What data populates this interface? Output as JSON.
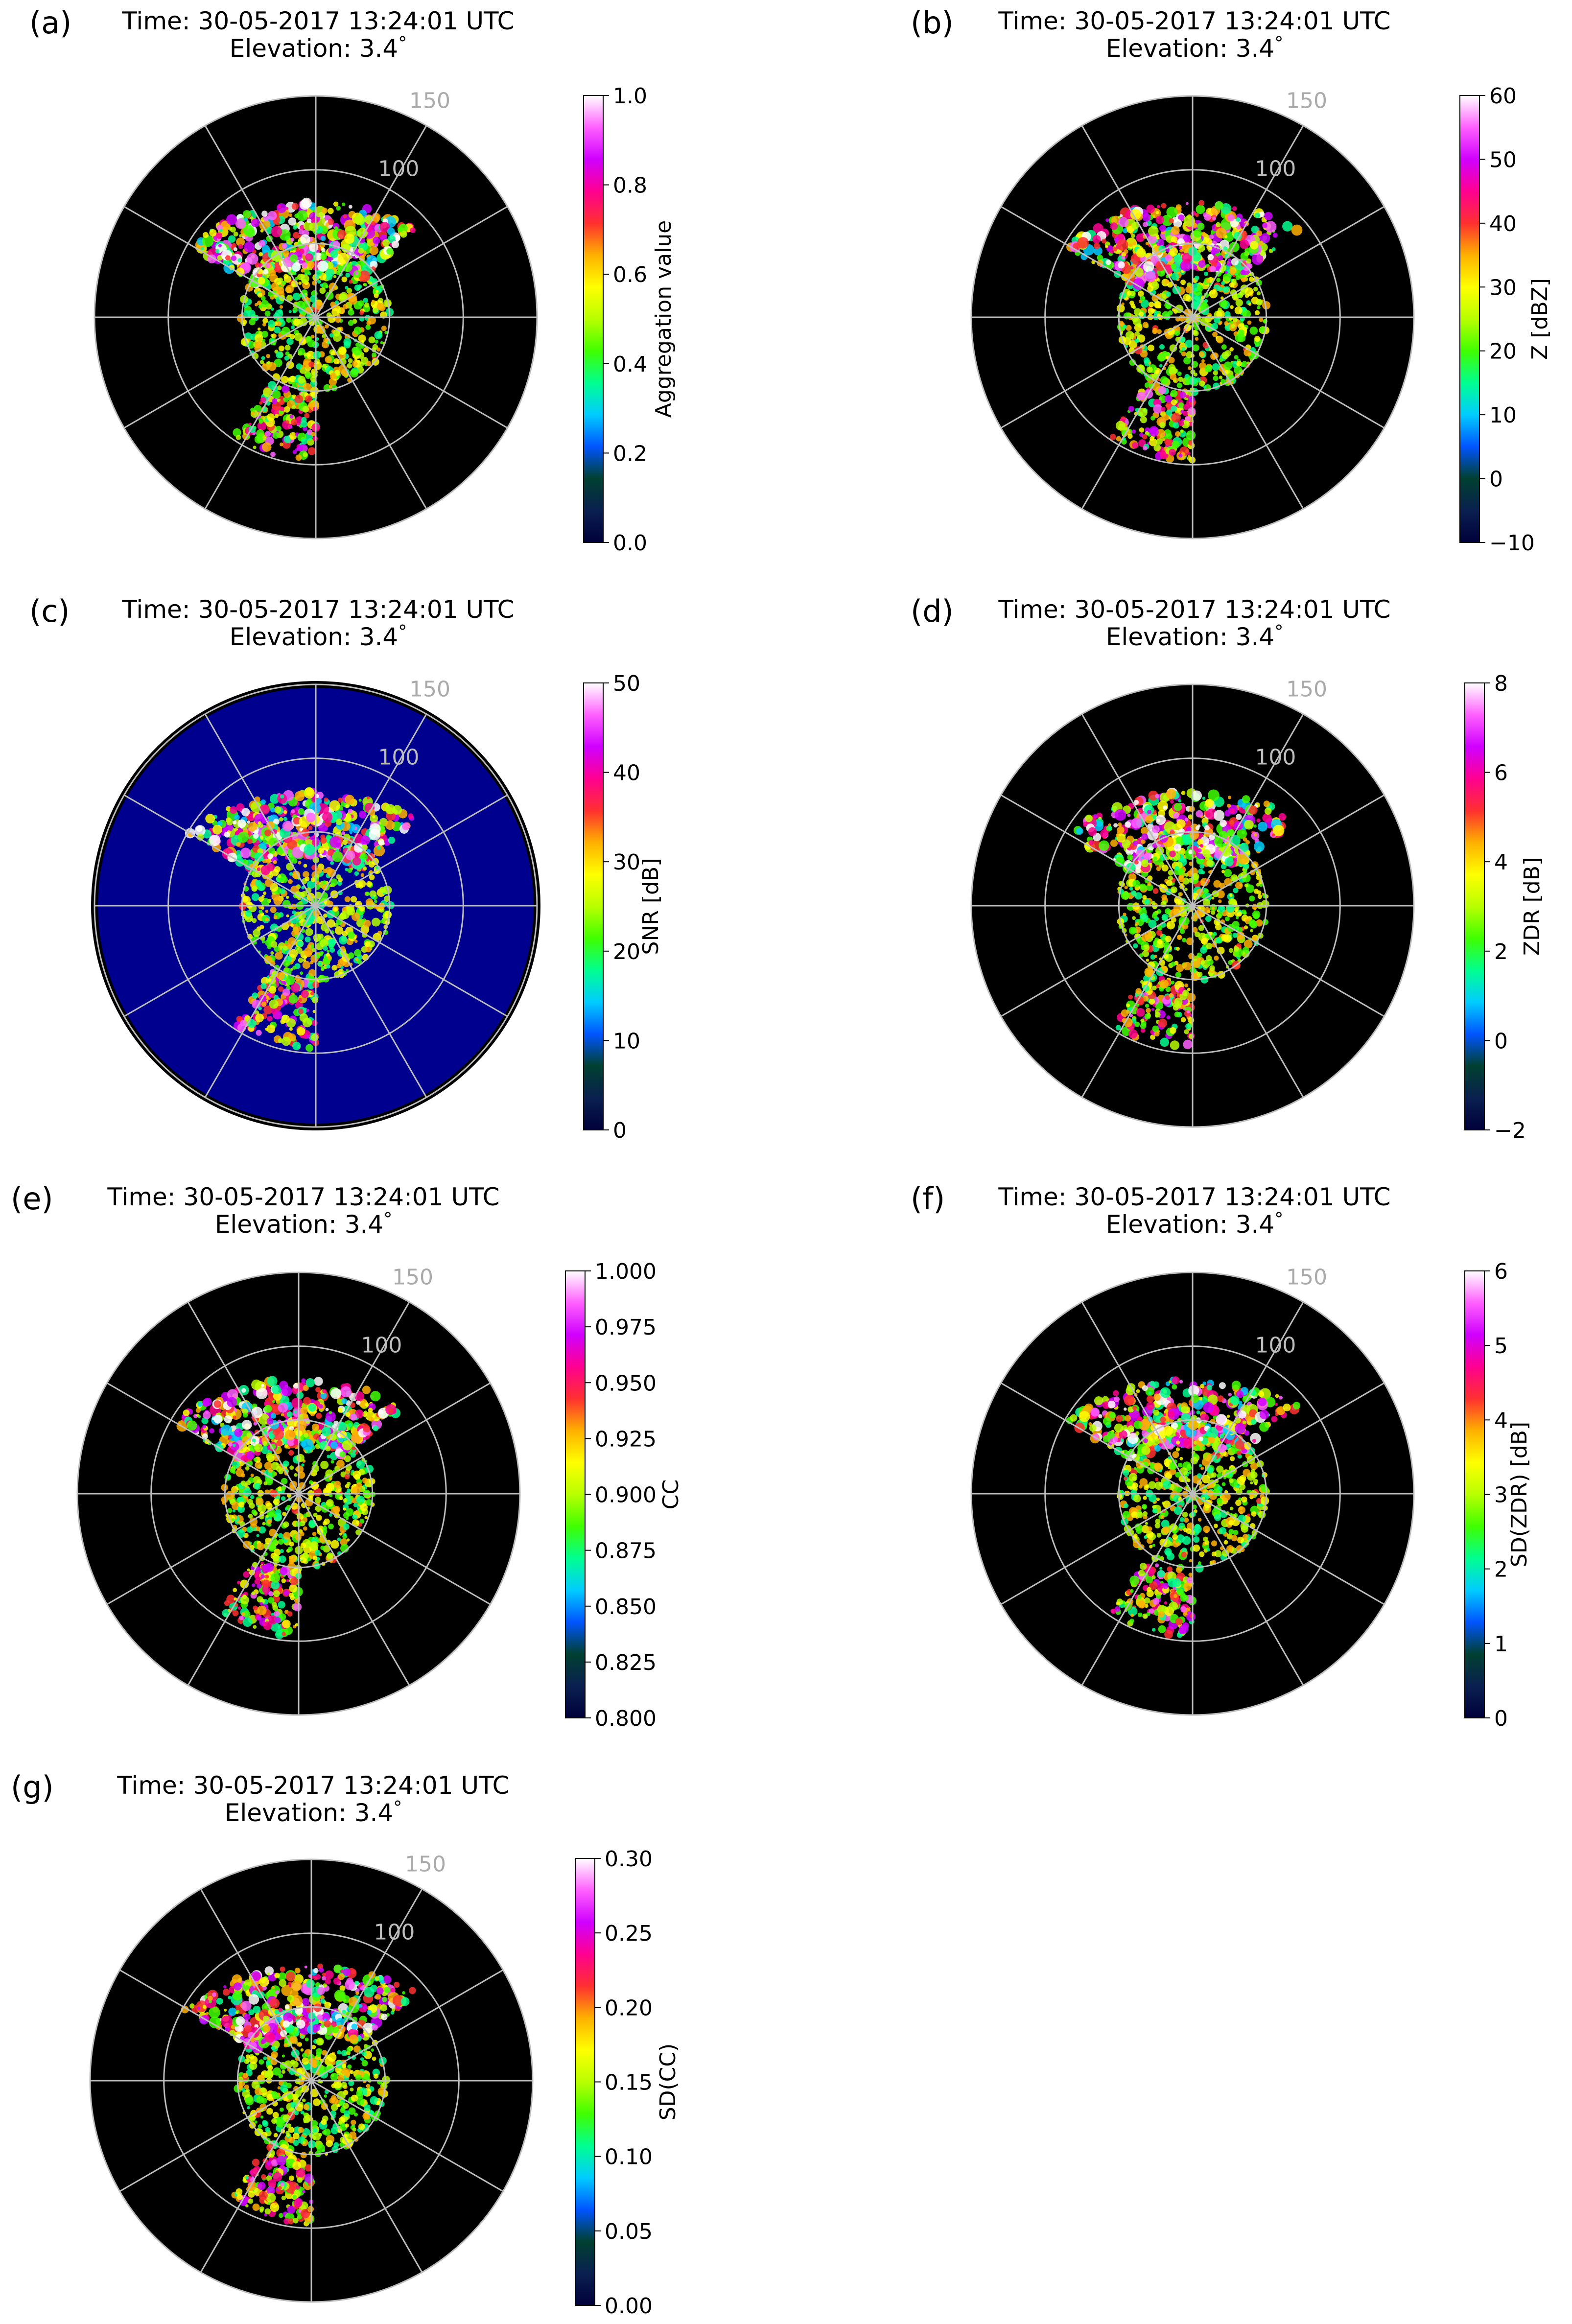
{
  "figure": {
    "panels": [
      {
        "letter": "(a)",
        "time_line": "Time: 30-05-2017 13:24:01 UTC",
        "elev_prefix": "Elevation: 3.4",
        "elev_degree": "°",
        "range_labels": [
          "100",
          "150"
        ],
        "colorbar": {
          "label": "Aggregation value",
          "ticks": [
            "0.0",
            "0.2",
            "0.4",
            "0.6",
            "0.8",
            "1.0"
          ],
          "range": [
            0.0,
            1.0
          ]
        },
        "background": "#000000"
      },
      {
        "letter": "(b)",
        "time_line": "Time: 30-05-2017 13:24:01 UTC",
        "elev_prefix": "Elevation: 3.4",
        "elev_degree": "°",
        "range_labels": [
          "100",
          "150"
        ],
        "colorbar": {
          "label": "Z [dBZ]",
          "ticks": [
            "−10",
            "0",
            "10",
            "20",
            "30",
            "40",
            "50",
            "60"
          ],
          "range": [
            -10,
            60
          ]
        },
        "background": "#000000"
      },
      {
        "letter": "(c)",
        "time_line": "Time: 30-05-2017 13:24:01 UTC",
        "elev_prefix": "Elevation: 3.4",
        "elev_degree": "°",
        "range_labels": [
          "100",
          "150"
        ],
        "colorbar": {
          "label": "SNR [dB]",
          "ticks": [
            "0",
            "10",
            "20",
            "30",
            "40",
            "50"
          ],
          "range": [
            0,
            50
          ]
        },
        "background": "#00008f"
      },
      {
        "letter": "(d)",
        "time_line": "Time: 30-05-2017 13:24:01 UTC",
        "elev_prefix": "Elevation: 3.4",
        "elev_degree": "°",
        "range_labels": [
          "100",
          "150"
        ],
        "colorbar": {
          "label": "ZDR [dB]",
          "ticks": [
            "−2",
            "0",
            "2",
            "4",
            "6",
            "8"
          ],
          "range": [
            -2,
            8
          ]
        },
        "background": "#000000"
      },
      {
        "letter": "(e)",
        "time_line": "Time: 30-05-2017 13:24:01 UTC",
        "elev_prefix": "Elevation: 3.4",
        "elev_degree": "°",
        "range_labels": [
          "100",
          "150"
        ],
        "colorbar": {
          "label": "CC",
          "ticks": [
            "0.800",
            "0.825",
            "0.850",
            "0.875",
            "0.900",
            "0.925",
            "0.950",
            "0.975",
            "1.000"
          ],
          "range": [
            0.8,
            1.0
          ]
        },
        "background": "#000000"
      },
      {
        "letter": "(f)",
        "time_line": "Time: 30-05-2017 13:24:01 UTC",
        "elev_prefix": "Elevation: 3.4",
        "elev_degree": "°",
        "range_labels": [
          "100",
          "150"
        ],
        "colorbar": {
          "label": "SD(ZDR) [dB]",
          "ticks": [
            "0",
            "1",
            "2",
            "3",
            "4",
            "5",
            "6"
          ],
          "range": [
            0,
            6
          ]
        },
        "background": "#000000"
      },
      {
        "letter": "(g)",
        "time_line": "Time: 30-05-2017 13:24:01 UTC",
        "elev_prefix": "Elevation: 3.4",
        "elev_degree": "°",
        "range_labels": [
          "100",
          "150"
        ],
        "colorbar": {
          "label": "SD(CC)",
          "ticks": [
            "0.00",
            "0.05",
            "0.10",
            "0.15",
            "0.20",
            "0.25",
            "0.30"
          ],
          "range": [
            0.0,
            0.3
          ]
        },
        "background": "#000000"
      }
    ]
  },
  "colormap_stops": [
    "#00003a",
    "#0a2050",
    "#004030",
    "#0055ff",
    "#00ccff",
    "#00ff90",
    "#40ff00",
    "#b8ff00",
    "#ffff00",
    "#ffb000",
    "#ff3030",
    "#ff0090",
    "#d000ff",
    "#ff60ff",
    "#ffffff"
  ],
  "chart_data": [
    {
      "type": "heatmap",
      "projection": "polar",
      "panel": "(a)",
      "title": "Time: 30-05-2017 13:24:01 UTC / Elevation: 3.4°",
      "range_rings": [
        50,
        100,
        150
      ],
      "range_ring_labels": [
        100,
        150
      ],
      "spokes_deg": 30,
      "colorbar_label": "Aggregation value",
      "colorbar_range": [
        0.0,
        1.0
      ]
    },
    {
      "type": "heatmap",
      "projection": "polar",
      "panel": "(b)",
      "title": "Time: 30-05-2017 13:24:01 UTC / Elevation: 3.4°",
      "range_rings": [
        50,
        100,
        150
      ],
      "range_ring_labels": [
        100,
        150
      ],
      "spokes_deg": 30,
      "colorbar_label": "Z [dBZ]",
      "colorbar_range": [
        -10,
        60
      ]
    },
    {
      "type": "heatmap",
      "projection": "polar",
      "panel": "(c)",
      "title": "Time: 30-05-2017 13:24:01 UTC / Elevation: 3.4°",
      "range_rings": [
        50,
        100,
        150
      ],
      "range_ring_labels": [
        100,
        150
      ],
      "spokes_deg": 30,
      "colorbar_label": "SNR [dB]",
      "colorbar_range": [
        0,
        50
      ]
    },
    {
      "type": "heatmap",
      "projection": "polar",
      "panel": "(d)",
      "title": "Time: 30-05-2017 13:24:01 UTC / Elevation: 3.4°",
      "range_rings": [
        50,
        100,
        150
      ],
      "range_ring_labels": [
        100,
        150
      ],
      "spokes_deg": 30,
      "colorbar_label": "ZDR [dB]",
      "colorbar_range": [
        -2,
        8
      ]
    },
    {
      "type": "heatmap",
      "projection": "polar",
      "panel": "(e)",
      "title": "Time: 30-05-2017 13:24:01 UTC / Elevation: 3.4°",
      "range_rings": [
        50,
        100,
        150
      ],
      "range_ring_labels": [
        100,
        150
      ],
      "spokes_deg": 30,
      "colorbar_label": "CC",
      "colorbar_range": [
        0.8,
        1.0
      ]
    },
    {
      "type": "heatmap",
      "projection": "polar",
      "panel": "(f)",
      "title": "Time: 30-05-2017 13:24:01 UTC / Elevation: 3.4°",
      "range_rings": [
        50,
        100,
        150
      ],
      "range_ring_labels": [
        100,
        150
      ],
      "spokes_deg": 30,
      "colorbar_label": "SD(ZDR) [dB]",
      "colorbar_range": [
        0,
        6
      ]
    },
    {
      "type": "heatmap",
      "projection": "polar",
      "panel": "(g)",
      "title": "Time: 30-05-2017 13:24:01 UTC / Elevation: 3.4°",
      "range_rings": [
        50,
        100,
        150
      ],
      "range_ring_labels": [
        100,
        150
      ],
      "spokes_deg": 30,
      "colorbar_label": "SD(CC)",
      "colorbar_range": [
        0.0,
        0.3
      ]
    }
  ]
}
